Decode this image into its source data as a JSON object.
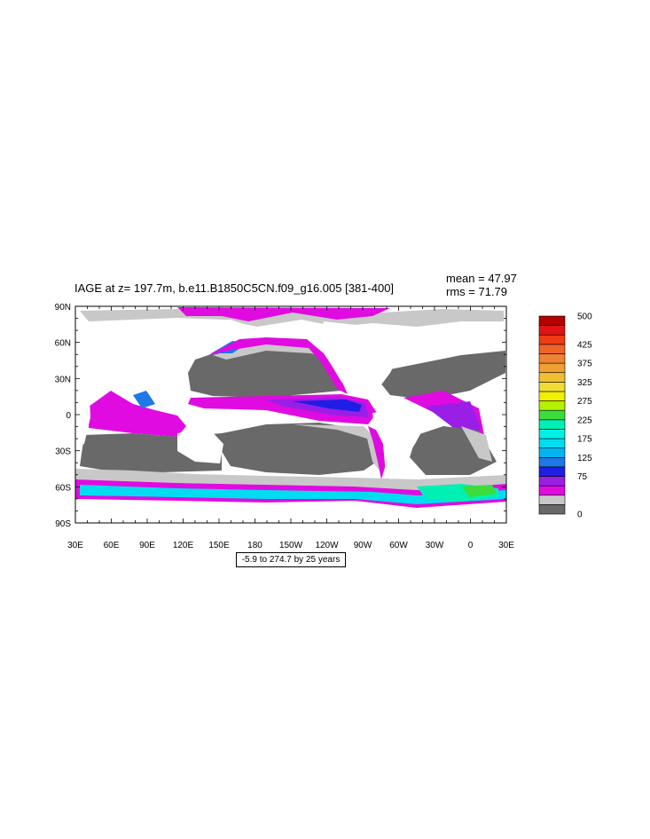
{
  "title": "IAGE at z= 197.7m, b.e11.B1850C5CN.f09_g16.005 [381-400]",
  "stats": {
    "mean": "mean = 47.97",
    "rms": "rms = 71.79"
  },
  "range_label": "-5.9 to 274.7 by 25 years",
  "y_ticks": [
    "90N",
    "60N",
    "30N",
    "0",
    "30S",
    "60S",
    "90S"
  ],
  "x_ticks": [
    "30E",
    "60E",
    "90E",
    "120E",
    "150E",
    "180",
    "150W",
    "120W",
    "90W",
    "60W",
    "30W",
    "0",
    "30E"
  ],
  "colorbar": {
    "colors": [
      "#696969",
      "#c8c8c8",
      "#e00be0",
      "#9a1ee6",
      "#1e1ee6",
      "#1e78e6",
      "#00b4f0",
      "#00dcf0",
      "#00f0e6",
      "#00f0b4",
      "#3cdc3c",
      "#b4f000",
      "#f0f000",
      "#f0dc32",
      "#f0be32",
      "#f0a032",
      "#f08232",
      "#f06428",
      "#f03c14",
      "#e01414",
      "#b40000"
    ],
    "labels": [
      {
        "text": "500",
        "at": 500
      },
      {
        "text": "425",
        "at": 425
      },
      {
        "text": "375",
        "at": 375
      },
      {
        "text": "325",
        "at": 325
      },
      {
        "text": "275",
        "at": 275
      },
      {
        "text": "225",
        "at": 225
      },
      {
        "text": "175",
        "at": 175
      },
      {
        "text": "125",
        "at": 125
      },
      {
        "text": "75",
        "at": 75
      },
      {
        "text": "0",
        "at": 0
      }
    ]
  }
}
